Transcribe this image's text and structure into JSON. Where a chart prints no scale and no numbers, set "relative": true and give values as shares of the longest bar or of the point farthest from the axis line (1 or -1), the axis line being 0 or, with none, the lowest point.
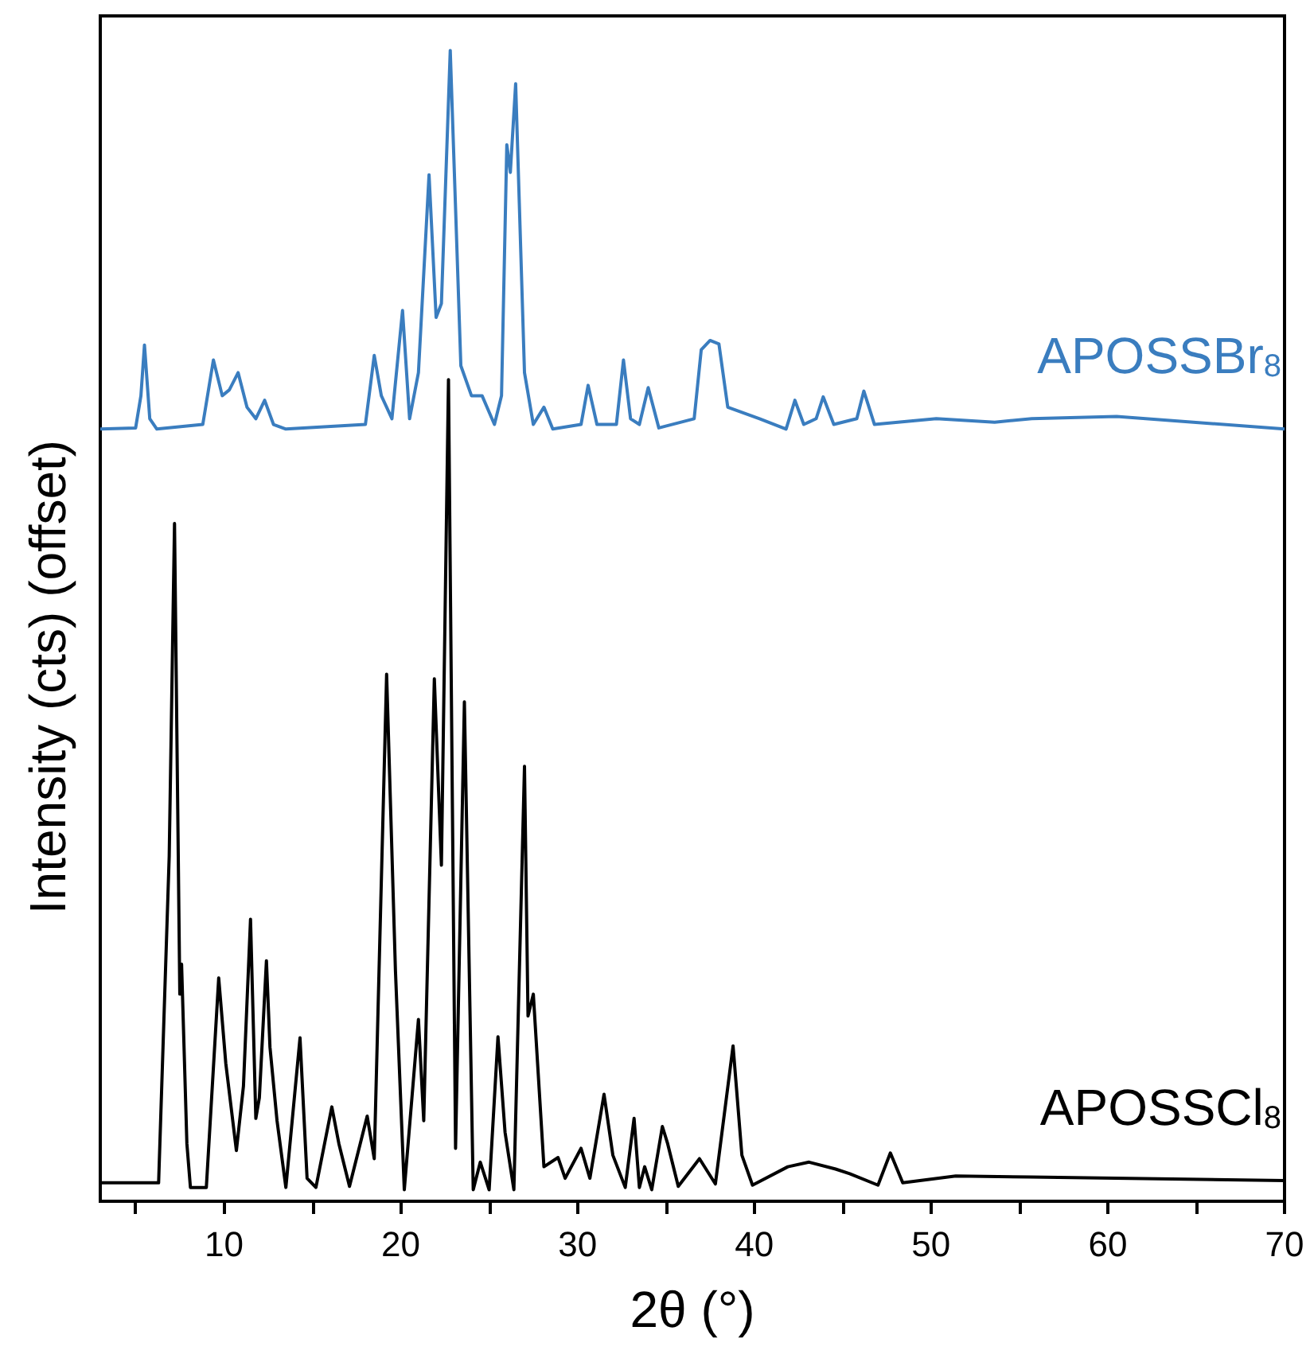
{
  "chart_data": {
    "type": "line",
    "relative": true,
    "xlabel": "2θ (°)",
    "ylabel": "Intensity (cts) (offset)",
    "xlim": [
      3,
      70
    ],
    "xticks": [
      {
        "value": 5,
        "label": null
      },
      10,
      {
        "value": 15,
        "label": null
      },
      20,
      {
        "value": 25,
        "label": null
      },
      30,
      {
        "value": 35,
        "label": null
      },
      40,
      {
        "value": 45,
        "label": null
      },
      50,
      {
        "value": 55,
        "label": null
      },
      60,
      {
        "value": 65,
        "label": null
      },
      70
    ],
    "grid": false,
    "legend": false,
    "marker": "none",
    "line_style": "solid",
    "series": [
      {
        "name": "APOSSBr$_{8}$",
        "color": "#3a7dbf",
        "x": [
          3,
          5,
          5.3,
          5.5,
          5.8,
          6.2,
          8.8,
          9.4,
          9.9,
          10.3,
          10.8,
          11.3,
          11.8,
          12.3,
          12.8,
          13.5,
          18,
          18.5,
          18.9,
          19.5,
          20.1,
          20.5,
          21,
          21.6,
          22,
          22.3,
          22.8,
          23.4,
          24,
          24.6,
          25.3,
          25.7,
          26,
          26.2,
          26.5,
          27,
          27.5,
          28.1,
          28.6,
          30.2,
          30.6,
          31.1,
          32.2,
          32.6,
          33,
          33.5,
          34,
          34.6,
          36.6,
          37,
          37.5,
          38,
          38.5,
          40.3,
          41.8,
          42.3,
          42.8,
          43.5,
          43.9,
          44.5,
          45.8,
          46.2,
          46.8,
          50.3,
          53.6,
          55.7,
          60.5,
          70
        ],
        "values": [
          0.671,
          0.672,
          0.7,
          0.744,
          0.68,
          0.671,
          0.675,
          0.731,
          0.7,
          0.705,
          0.72,
          0.69,
          0.68,
          0.696,
          0.675,
          0.671,
          0.675,
          0.735,
          0.7,
          0.68,
          0.774,
          0.68,
          0.72,
          0.892,
          0.768,
          0.78,
          1,
          0.726,
          0.7,
          0.7,
          0.675,
          0.7,
          0.918,
          0.894,
          0.971,
          0.72,
          0.675,
          0.69,
          0.671,
          0.675,
          0.709,
          0.675,
          0.675,
          0.731,
          0.68,
          0.675,
          0.707,
          0.672,
          0.68,
          0.74,
          0.748,
          0.745,
          0.69,
          0.68,
          0.671,
          0.696,
          0.675,
          0.68,
          0.699,
          0.675,
          0.68,
          0.704,
          0.675,
          0.68,
          0.677,
          0.68,
          0.682,
          0.671
        ]
      },
      {
        "name": "APOSSCl$_{8}$",
        "color": "#000000",
        "x": [
          3,
          6.3,
          6.9,
          7.2,
          7.5,
          7.6,
          7.9,
          8.1,
          9,
          9.7,
          10.1,
          10.7,
          11.1,
          11.5,
          11.8,
          12,
          12.4,
          12.6,
          13,
          13.5,
          14.3,
          14.7,
          15.2,
          16.1,
          16.5,
          17.1,
          18.1,
          18.5,
          19.2,
          19.7,
          20.2,
          21,
          21.3,
          21.9,
          22.3,
          22.7,
          23.1,
          23.6,
          24.1,
          24.5,
          25,
          25.5,
          25.9,
          26.4,
          27,
          27.2,
          27.5,
          28.1,
          28.9,
          29.3,
          30.2,
          30.7,
          31.5,
          32,
          32.7,
          33.2,
          33.5,
          33.8,
          34.2,
          34.8,
          35.1,
          35.7,
          36.9,
          37.8,
          38.8,
          39.3,
          39.9,
          41.9,
          43.1,
          44.6,
          45.4,
          47,
          47.7,
          48.4,
          51.4,
          55.6,
          70
        ],
        "values": [
          0.016,
          0.016,
          0.3,
          0.589,
          0.18,
          0.206,
          0.05,
          0.012,
          0.012,
          0.194,
          0.12,
          0.044,
          0.1,
          0.245,
          0.072,
          0.09,
          0.209,
          0.134,
          0.07,
          0.012,
          0.142,
          0.02,
          0.012,
          0.082,
          0.05,
          0.013,
          0.074,
          0.037,
          0.458,
          0.2,
          0.01,
          0.158,
          0.07,
          0.454,
          0.292,
          0.714,
          0.046,
          0.434,
          0.01,
          0.034,
          0.01,
          0.143,
          0.06,
          0.01,
          0.378,
          0.161,
          0.18,
          0.03,
          0.038,
          0.02,
          0.046,
          0.02,
          0.093,
          0.04,
          0.012,
          0.072,
          0.012,
          0.03,
          0.01,
          0.065,
          0.05,
          0.013,
          0.037,
          0.015,
          0.135,
          0.04,
          0.014,
          0.03,
          0.034,
          0.028,
          0.024,
          0.014,
          0.042,
          0.016,
          0.022,
          0.021,
          0.018
        ]
      }
    ]
  }
}
